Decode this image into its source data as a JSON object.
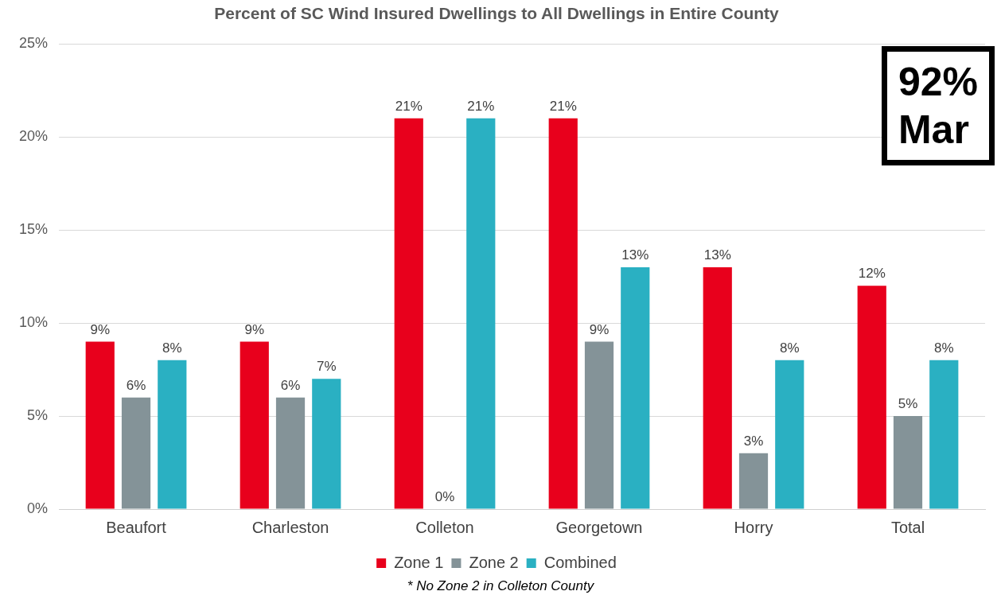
{
  "chart_data": {
    "type": "bar",
    "title": "Percent of SC Wind Insured Dwellings to All Dwellings in Entire County",
    "categories": [
      "Beaufort",
      "Charleston",
      "Colleton",
      "Georgetown",
      "Horry",
      "Total"
    ],
    "series": [
      {
        "name": "Zone 1",
        "color": "#e8001c",
        "values": [
          9,
          9,
          21,
          21,
          13,
          12
        ],
        "value_labels": [
          "9%",
          "9%",
          "21%",
          "21%",
          "13%",
          "12%"
        ]
      },
      {
        "name": "Zone 2",
        "color": "#849398",
        "values": [
          6,
          6,
          0,
          9,
          3,
          5
        ],
        "value_labels": [
          "6%",
          "6%",
          "0%",
          "9%",
          "3%",
          "5%"
        ]
      },
      {
        "name": "Combined",
        "color": "#2ab0c2",
        "values": [
          8,
          7,
          21,
          13,
          8,
          8
        ],
        "value_labels": [
          "8%",
          "7%",
          "21%",
          "13%",
          "8%",
          "8%"
        ]
      }
    ],
    "ylim": [
      0,
      25
    ],
    "yticks": [
      {
        "value": 0,
        "label": "0%"
      },
      {
        "value": 5,
        "label": "5%"
      },
      {
        "value": 10,
        "label": "10%"
      },
      {
        "value": 15,
        "label": "15%"
      },
      {
        "value": 20,
        "label": "20%"
      },
      {
        "value": 25,
        "label": "25%"
      }
    ],
    "grid": "y",
    "legend": "bottom",
    "annotations": [
      "92%",
      "Mar",
      "* No Zone 2 in Colleton County"
    ]
  }
}
